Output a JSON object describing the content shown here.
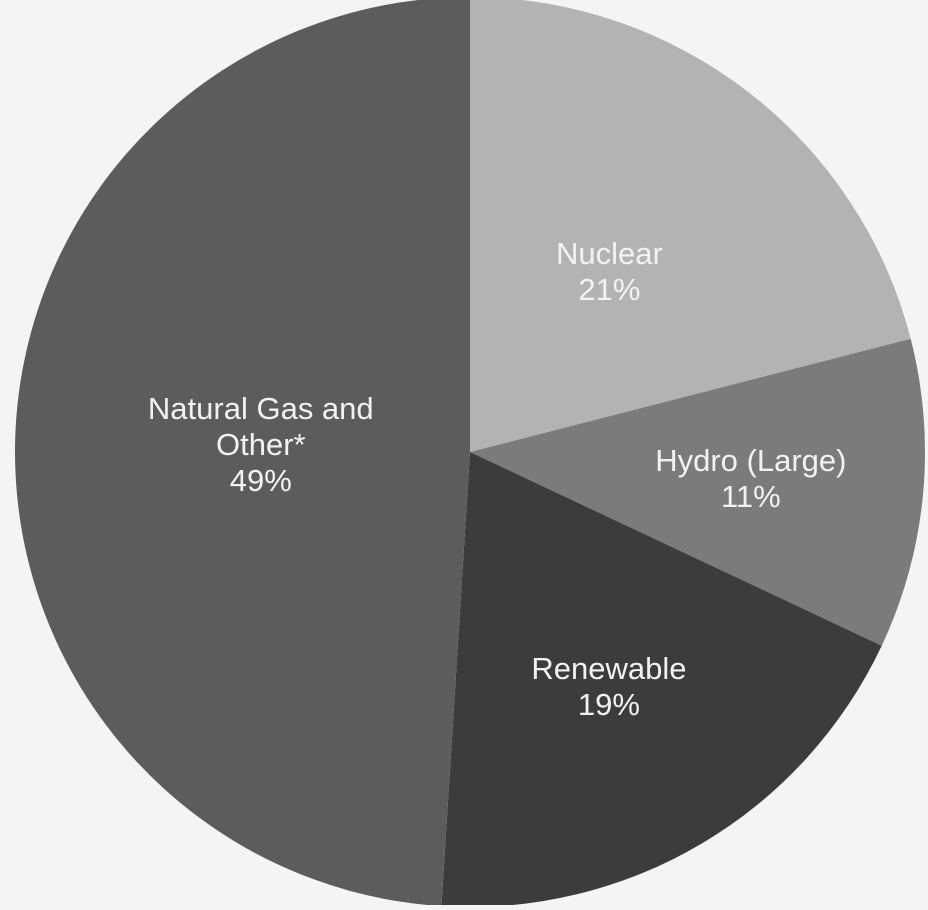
{
  "chart_data": {
    "type": "pie",
    "categories": [
      "Nuclear",
      "Hydro (Large)",
      "Renewable",
      "Natural Gas and Other*"
    ],
    "values": [
      21,
      11,
      19,
      49
    ],
    "value_labels": [
      "21%",
      "11%",
      "19%",
      "49%"
    ],
    "colors": [
      "#b3b3b3",
      "#7b7b7b",
      "#3c3c3c",
      "#5c5c5c"
    ]
  }
}
